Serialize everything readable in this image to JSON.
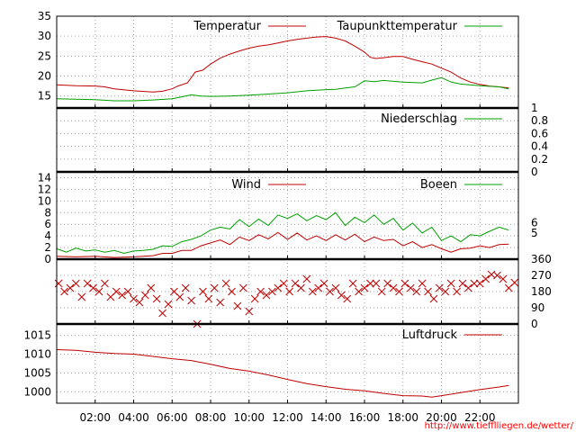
{
  "colors": {
    "red": "#c00000",
    "green": "#00a000",
    "credit": "#ff0000"
  },
  "x_ticks": [
    "02:00",
    "04:00",
    "06:00",
    "08:00",
    "10:00",
    "12:00",
    "14:00",
    "16:00",
    "18:00",
    "20:00",
    "22:00"
  ],
  "credit": "http://www.tiefflliegen.de/wetter/",
  "chart_data": [
    {
      "type": "line",
      "panel": "temperature",
      "x_unit": "hours since 00:00",
      "xlim": [
        0,
        24
      ],
      "ylim": [
        12,
        35
      ],
      "yticks_left": [
        "15",
        "20",
        "25",
        "30",
        "35"
      ],
      "series": [
        {
          "name": "Temperatur",
          "color": "#c00000",
          "x": [
            0,
            1,
            2,
            2.5,
            3,
            4,
            5,
            5.5,
            6,
            6.3,
            6.8,
            7.2,
            7.6,
            8,
            8.5,
            9,
            9.5,
            10,
            10.5,
            11,
            11.5,
            12,
            12.5,
            13,
            13.5,
            14,
            14.5,
            15,
            15.5,
            16,
            16.3,
            16.6,
            17,
            17.5,
            18,
            18.5,
            19,
            19.5,
            20,
            20.5,
            21,
            21.5,
            22,
            22.5,
            23,
            23.5
          ],
          "y": [
            17.8,
            17.6,
            17.5,
            17.3,
            16.8,
            16.3,
            16.0,
            16.2,
            16.8,
            17.5,
            18.3,
            21.0,
            21.5,
            23.0,
            24.5,
            25.5,
            26.3,
            27.0,
            27.5,
            27.8,
            28.3,
            28.8,
            29.2,
            29.5,
            29.8,
            29.9,
            29.5,
            28.8,
            27.5,
            26.0,
            24.7,
            24.4,
            24.6,
            24.9,
            24.9,
            24.2,
            23.6,
            23.0,
            22.0,
            21.0,
            19.5,
            18.5,
            17.9,
            17.5,
            17.3,
            17.0
          ]
        },
        {
          "name": "Taupunkttemperatur",
          "color": "#00a000",
          "x": [
            0,
            1,
            2,
            3,
            4,
            5,
            6,
            6.5,
            7,
            7.5,
            8,
            9,
            10,
            11,
            12,
            13,
            14,
            14.5,
            15,
            15.5,
            16,
            16.5,
            17,
            18,
            19,
            19.5,
            20,
            20.5,
            21,
            22,
            23,
            23.5
          ],
          "y": [
            14.3,
            14.2,
            14.1,
            13.8,
            13.8,
            14.0,
            14.3,
            14.8,
            15.3,
            15.0,
            14.9,
            15.0,
            15.2,
            15.5,
            15.8,
            16.3,
            16.6,
            16.7,
            17.0,
            17.3,
            18.8,
            18.6,
            18.9,
            18.5,
            18.3,
            19.0,
            19.6,
            18.5,
            18.0,
            17.6,
            17.3,
            16.8
          ]
        }
      ]
    },
    {
      "type": "line",
      "panel": "precipitation",
      "x_unit": "hours since 00:00",
      "xlim": [
        0,
        24
      ],
      "ylim": [
        0,
        1
      ],
      "yticks_right": [
        "0",
        "0.2",
        "0.4",
        "0.6",
        "0.8",
        "1"
      ],
      "series": [
        {
          "name": "Niederschlag",
          "color": "#00a000",
          "x": [
            0,
            24
          ],
          "y": [
            0,
            0
          ]
        }
      ]
    },
    {
      "type": "line",
      "panel": "wind",
      "x_unit": "hours since 00:00",
      "xlim": [
        0,
        24
      ],
      "ylim": [
        0,
        15
      ],
      "yticks_left": [
        "0",
        "2",
        "4",
        "6",
        "8",
        "10",
        "12",
        "14"
      ],
      "yticks_right": [
        "5",
        "6"
      ],
      "series": [
        {
          "name": "Wind",
          "color": "#c00000",
          "x": [
            0,
            1,
            2,
            3,
            4,
            5,
            5.5,
            6,
            6.5,
            7,
            7.5,
            8,
            8.5,
            9,
            9.5,
            10,
            10.5,
            11,
            11.5,
            12,
            12.5,
            13,
            13.5,
            14,
            14.5,
            15,
            15.5,
            16,
            16.5,
            17,
            17.5,
            18,
            18.5,
            19,
            19.5,
            20,
            20.5,
            21,
            21.5,
            22,
            22.5,
            23,
            23.5
          ],
          "y": [
            0.5,
            0.4,
            0.5,
            0.3,
            0.4,
            0.6,
            1.0,
            1.0,
            1.5,
            1.5,
            2.3,
            2.8,
            3.3,
            2.5,
            3.8,
            3.2,
            4.2,
            3.5,
            4.6,
            3.4,
            4.5,
            3.3,
            4.0,
            3.2,
            4.2,
            3.3,
            4.3,
            3.0,
            3.8,
            3.2,
            3.4,
            2.3,
            3.0,
            2.0,
            2.5,
            1.8,
            1.2,
            1.8,
            1.9,
            2.3,
            2.0,
            2.5,
            2.6
          ]
        },
        {
          "name": "Boeen",
          "color": "#00a000",
          "x": [
            0,
            0.5,
            1,
            1.5,
            2,
            2.5,
            3,
            3.5,
            4,
            4.5,
            5,
            5.5,
            6,
            6.5,
            7,
            7.5,
            8,
            8.5,
            9,
            9.5,
            10,
            10.5,
            11,
            11.5,
            12,
            12.5,
            13,
            13.5,
            14,
            14.5,
            15,
            15.5,
            16,
            16.5,
            17,
            17.5,
            18,
            18.5,
            19,
            19.5,
            20,
            20.5,
            21,
            21.5,
            22,
            22.5,
            23,
            23.5
          ],
          "y": [
            1.8,
            1.2,
            1.9,
            1.4,
            1.6,
            1.2,
            1.5,
            1.0,
            1.4,
            1.5,
            1.7,
            2.3,
            2.2,
            3.0,
            3.4,
            4.0,
            5.0,
            5.5,
            5.2,
            6.8,
            5.6,
            6.9,
            5.8,
            7.6,
            7.0,
            7.8,
            6.6,
            7.5,
            6.8,
            8.0,
            5.8,
            7.2,
            6.3,
            7.6,
            6.0,
            7.0,
            5.0,
            6.2,
            4.5,
            5.5,
            3.2,
            4.0,
            3.0,
            4.2,
            4.0,
            4.8,
            5.5,
            5.0
          ]
        }
      ]
    },
    {
      "type": "scatter",
      "panel": "wind_direction",
      "x_unit": "hours since 00:00",
      "xlim": [
        0,
        24
      ],
      "ylim": [
        0,
        360
      ],
      "yticks_right": [
        "0",
        "90",
        "180",
        "270",
        "360"
      ],
      "series": [
        {
          "name": "",
          "color": "#c00000",
          "x": [
            0.1,
            0.4,
            0.7,
            1.0,
            1.3,
            1.6,
            1.9,
            2.2,
            2.5,
            2.8,
            3.1,
            3.4,
            3.7,
            4.0,
            4.3,
            4.6,
            4.9,
            5.2,
            5.5,
            5.8,
            6.1,
            6.4,
            6.7,
            7.0,
            7.3,
            7.6,
            7.9,
            8.2,
            8.5,
            8.8,
            9.1,
            9.4,
            9.7,
            10.0,
            10.3,
            10.6,
            10.9,
            11.2,
            11.5,
            11.8,
            12.1,
            12.4,
            12.7,
            13.0,
            13.3,
            13.6,
            13.9,
            14.2,
            14.5,
            14.8,
            15.1,
            15.4,
            15.7,
            16.0,
            16.3,
            16.6,
            16.9,
            17.2,
            17.5,
            17.8,
            18.1,
            18.4,
            18.7,
            19.0,
            19.3,
            19.6,
            19.9,
            20.2,
            20.5,
            20.8,
            21.1,
            21.4,
            21.7,
            22.0,
            22.3,
            22.6,
            22.9,
            23.2,
            23.5,
            23.8
          ],
          "y": [
            225,
            180,
            200,
            225,
            150,
            225,
            200,
            180,
            225,
            150,
            180,
            160,
            180,
            140,
            120,
            160,
            200,
            140,
            60,
            110,
            180,
            150,
            200,
            130,
            0,
            180,
            140,
            200,
            120,
            225,
            180,
            100,
            200,
            70,
            140,
            180,
            160,
            180,
            200,
            225,
            180,
            225,
            200,
            250,
            180,
            200,
            225,
            180,
            200,
            160,
            140,
            225,
            180,
            200,
            225,
            225,
            180,
            225,
            200,
            180,
            225,
            200,
            180,
            225,
            180,
            140,
            200,
            180,
            225,
            180,
            225,
            200,
            225,
            225,
            250,
            275,
            270,
            250,
            200,
            230
          ]
        }
      ]
    },
    {
      "type": "line",
      "panel": "pressure",
      "x_unit": "hours since 00:00",
      "xlim": [
        0,
        24
      ],
      "ylim": [
        997,
        1018
      ],
      "yticks_left": [
        "1000",
        "1005",
        "1010",
        "1015"
      ],
      "series": [
        {
          "name": "Luftdruck",
          "color": "#c00000",
          "x": [
            0,
            1,
            2,
            3,
            4,
            5,
            6,
            7,
            8,
            9,
            10,
            11,
            12,
            13,
            14,
            15,
            16,
            17,
            18,
            19,
            19.5,
            20,
            21,
            22,
            23,
            23.5
          ],
          "y": [
            1011.2,
            1011.0,
            1010.5,
            1010.2,
            1010.0,
            1009.4,
            1008.8,
            1008.3,
            1007.3,
            1006.2,
            1005.5,
            1004.5,
            1003.3,
            1002.2,
            1001.4,
            1000.7,
            1000.3,
            999.6,
            999.0,
            998.9,
            998.6,
            999.0,
            999.8,
            1000.6,
            1001.3,
            1001.7
          ]
        }
      ]
    }
  ]
}
